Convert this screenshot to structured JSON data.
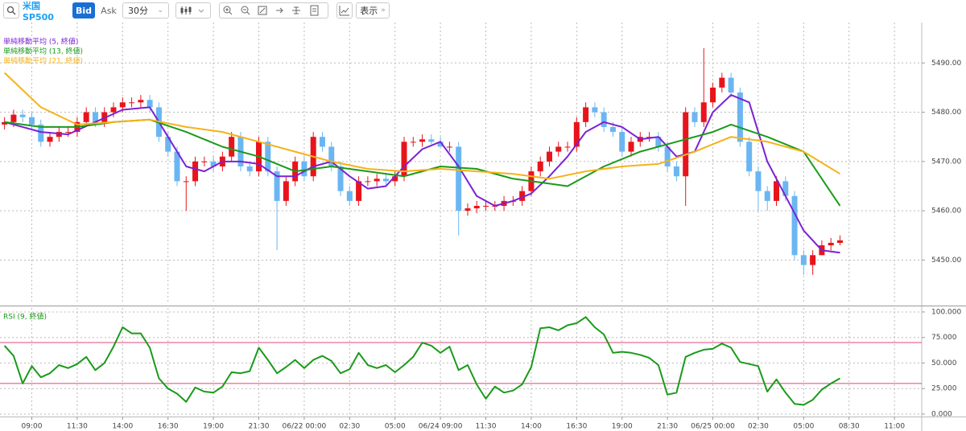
{
  "toolbar": {
    "symbol": "米国SP500",
    "bid": "Bid",
    "ask": "Ask",
    "interval": "30分",
    "display": "表示"
  },
  "chart_data": [
    {
      "type": "candlestick",
      "open": [
        5477.5,
        5478,
        5479.5,
        5479,
        5477.5,
        5474,
        5475,
        5476,
        5476,
        5478,
        5480,
        5478,
        5480,
        5481,
        5482,
        5482,
        5482.5,
        5481,
        5475,
        5472,
        5466,
        5466,
        5470,
        5470,
        5469,
        5471,
        5475,
        5469,
        5468,
        5474,
        5468,
        5462,
        5466,
        5470,
        5467,
        5475,
        5473,
        5469,
        5464,
        5462,
        5466,
        5466,
        5466.5,
        5466,
        5467,
        5474,
        5474,
        5474.5,
        5474,
        5473,
        5473,
        5460,
        5460.5,
        5461,
        5461,
        5461,
        5462,
        5462,
        5464,
        5468,
        5470,
        5472,
        5473,
        5473,
        5478,
        5481,
        5480,
        5477,
        5476,
        5472,
        5474,
        5475,
        5475,
        5473,
        5469,
        5467,
        5480,
        5478,
        5482,
        5485,
        5487,
        5484,
        5474,
        5468,
        5464,
        5462,
        5466,
        5463,
        5451,
        5449,
        5451,
        5453,
        5453.5
      ],
      "high": [
        5479,
        5480.5,
        5480.5,
        5480,
        5478.5,
        5476,
        5477,
        5477,
        5479,
        5481,
        5481,
        5481,
        5482,
        5483,
        5483,
        5483.5,
        5483.5,
        5482,
        5476,
        5473,
        5467,
        5471,
        5471,
        5471,
        5472,
        5476,
        5476,
        5470,
        5475,
        5475,
        5469,
        5467,
        5471,
        5471,
        5476,
        5476,
        5474,
        5470,
        5465,
        5467,
        5467,
        5467.5,
        5467.5,
        5468,
        5475,
        5475,
        5475.5,
        5475.5,
        5475,
        5474,
        5474,
        5461.5,
        5462,
        5462,
        5462,
        5463,
        5463,
        5465,
        5469,
        5471,
        5473,
        5474,
        5474,
        5479,
        5482,
        5482,
        5481,
        5478,
        5477,
        5475,
        5476,
        5476,
        5476,
        5474,
        5470,
        5481,
        5481,
        5493,
        5486,
        5488,
        5488,
        5485,
        5475,
        5469,
        5465,
        5467,
        5467,
        5464,
        5452,
        5452,
        5454,
        5454.5,
        5455
      ],
      "low": [
        5476.5,
        5477,
        5478,
        5476.5,
        5473,
        5473,
        5474,
        5475,
        5475,
        5477,
        5477,
        5477,
        5479,
        5480,
        5481,
        5481,
        5480,
        5474,
        5471,
        5465,
        5460,
        5465,
        5469,
        5468,
        5468,
        5470,
        5468,
        5467,
        5467,
        5467,
        5452,
        5461,
        5465,
        5466,
        5466,
        5472,
        5468,
        5463,
        5461,
        5461,
        5465,
        5465,
        5465,
        5465,
        5466,
        5473,
        5473,
        5473.5,
        5473,
        5472,
        5455,
        5459,
        5459.5,
        5460,
        5460,
        5460,
        5461,
        5461,
        5463,
        5467,
        5469,
        5471,
        5472,
        5472,
        5477,
        5479,
        5476,
        5475,
        5471,
        5471,
        5473,
        5474,
        5472,
        5468,
        5466,
        5461,
        5477,
        5477,
        5481,
        5484,
        5483,
        5473,
        5467,
        5460,
        5460,
        5461,
        5462,
        5450,
        5447,
        5447,
        5451,
        5452,
        5453
      ],
      "close": [
        5478,
        5479.5,
        5479,
        5477.5,
        5474,
        5475,
        5476,
        5476,
        5478,
        5480,
        5478,
        5480,
        5481,
        5482,
        5482,
        5482.5,
        5481,
        5475,
        5472,
        5466,
        5466,
        5470,
        5470,
        5469,
        5471,
        5475,
        5469,
        5468,
        5474,
        5468,
        5462,
        5466,
        5470,
        5467,
        5475,
        5473,
        5469,
        5464,
        5462,
        5466,
        5466,
        5466.5,
        5466,
        5467,
        5474,
        5474,
        5474.5,
        5474,
        5473,
        5473,
        5460,
        5460.5,
        5461,
        5461,
        5461,
        5462,
        5462,
        5464,
        5468,
        5470,
        5472,
        5473,
        5473,
        5478,
        5481,
        5480,
        5477,
        5476,
        5472,
        5474,
        5475,
        5475,
        5473,
        5469,
        5467,
        5480,
        5478,
        5482,
        5485,
        5487,
        5484,
        5474,
        5468,
        5464,
        5462,
        5466,
        5463,
        5451,
        5449,
        5451,
        5453,
        5453.5,
        5454
      ],
      "up_color": "#e8141b",
      "down_color": "#6bb6f2",
      "ylim": [
        5441.1,
        5498.2
      ],
      "yticks": [
        {
          "value": 5450,
          "label": "5450.00"
        },
        {
          "value": 5460,
          "label": "5460.00"
        },
        {
          "value": 5470,
          "label": "5470.00"
        },
        {
          "value": 5480,
          "label": "5480.00"
        },
        {
          "value": 5490,
          "label": "5490.00"
        }
      ],
      "grid": true,
      "series": [
        {
          "name": "単純移動平均 (5, 終値)",
          "color": "#7b22d4",
          "x": [
            0,
            4,
            7,
            10,
            13,
            16,
            18,
            20,
            22,
            24,
            26,
            28,
            30,
            32,
            34,
            36,
            38,
            40,
            42,
            44,
            46,
            48,
            50,
            52,
            54,
            56,
            58,
            60,
            62,
            64,
            66,
            68,
            70,
            72,
            74,
            76,
            78,
            80,
            82,
            84,
            86,
            88,
            90,
            92
          ],
          "values": [
            5478,
            5476,
            5475.5,
            5478,
            5480.5,
            5481,
            5475,
            5469,
            5468,
            5470,
            5470,
            5469.5,
            5467,
            5467,
            5469,
            5470,
            5467,
            5464.5,
            5465,
            5469,
            5472.5,
            5474,
            5469,
            5463,
            5461,
            5462,
            5463.5,
            5467,
            5471,
            5476,
            5478,
            5477,
            5474.5,
            5475,
            5471,
            5472,
            5480,
            5483.5,
            5482,
            5470,
            5463,
            5456,
            5452,
            5451.5
          ]
        },
        {
          "name": "単純移動平均 (13, 終値)",
          "color": "#1a9a1a",
          "x": [
            0,
            4,
            8,
            12,
            16,
            20,
            24,
            28,
            32,
            36,
            40,
            44,
            48,
            52,
            56,
            60,
            62,
            66,
            70,
            74,
            78,
            80,
            84,
            88,
            92
          ],
          "values": [
            5478,
            5477,
            5477,
            5478,
            5478.5,
            5476,
            5473,
            5471,
            5468,
            5469,
            5468,
            5467,
            5469,
            5468.5,
            5466.5,
            5465.5,
            5465,
            5469,
            5472,
            5474,
            5476,
            5477.5,
            5475,
            5472,
            5461
          ]
        },
        {
          "name": "単純移動平均 (21, 終値)",
          "color": "#f5b21a",
          "x": [
            0,
            4,
            8,
            12,
            16,
            20,
            24,
            28,
            32,
            36,
            40,
            44,
            48,
            52,
            56,
            60,
            64,
            68,
            72,
            76,
            80,
            84,
            88,
            92
          ],
          "values": [
            5488,
            5481,
            5477.5,
            5478,
            5478.5,
            5477,
            5476,
            5474,
            5472,
            5470,
            5468.5,
            5468,
            5468.5,
            5468,
            5467.5,
            5466.5,
            5468,
            5469,
            5469.5,
            5472,
            5475,
            5474,
            5472,
            5467.5
          ]
        }
      ]
    },
    {
      "type": "line",
      "series": [
        {
          "name": "RSI (9, 終値)",
          "color": "#1a9a1a",
          "values": [
            67,
            57,
            30,
            47,
            36,
            40,
            48,
            45,
            49,
            56,
            43,
            50,
            66,
            85,
            79,
            79,
            65,
            35,
            25,
            20,
            12,
            26,
            22,
            21,
            27,
            41,
            40,
            42,
            65,
            53,
            40,
            46,
            53,
            45,
            53,
            57,
            52,
            40,
            44,
            60,
            48,
            45,
            48,
            41,
            48,
            56,
            70,
            67,
            60,
            66,
            43,
            48,
            29,
            15,
            27,
            21,
            23,
            29,
            46,
            84,
            85,
            82,
            87,
            89,
            95,
            85,
            78,
            60,
            61,
            60,
            58,
            55,
            48,
            19,
            21,
            56,
            60,
            63,
            64,
            69,
            65,
            51,
            49,
            47,
            22,
            34,
            21,
            10,
            9,
            14,
            24,
            30,
            35
          ]
        }
      ],
      "levels": [
        30,
        70
      ],
      "level_color": "#e0457b",
      "ylim": [
        -2.4,
        103.9
      ],
      "yticks": [
        {
          "value": 0,
          "label": "0.000"
        },
        {
          "value": 25,
          "label": "25.000"
        },
        {
          "value": 50,
          "label": "50.000"
        },
        {
          "value": 75,
          "label": "75.000"
        },
        {
          "value": 100,
          "label": "100.000"
        }
      ],
      "grid": true,
      "xlim": [
        -0.5,
        101
      ],
      "xticks": [
        {
          "value": 3,
          "label": "09:00"
        },
        {
          "value": 8,
          "label": "11:30"
        },
        {
          "value": 13,
          "label": "14:00"
        },
        {
          "value": 18,
          "label": "16:30"
        },
        {
          "value": 23,
          "label": "19:00"
        },
        {
          "value": 28,
          "label": "21:30"
        },
        {
          "value": 33,
          "label": "06/22 00:00"
        },
        {
          "value": 38,
          "label": "02:30"
        },
        {
          "value": 43,
          "label": "05:00"
        },
        {
          "value": 48,
          "label": "06/24 09:00"
        },
        {
          "value": 53,
          "label": "11:30"
        },
        {
          "value": 58,
          "label": "14:00"
        },
        {
          "value": 63,
          "label": "16:30"
        },
        {
          "value": 68,
          "label": "19:00"
        },
        {
          "value": 73,
          "label": "21:30"
        },
        {
          "value": 78,
          "label": "06/25 00:00"
        },
        {
          "value": 83,
          "label": "02:30"
        },
        {
          "value": 88,
          "label": "05:00"
        },
        {
          "value": 93,
          "label": "08:30"
        },
        {
          "value": 98,
          "label": "11:00"
        }
      ]
    }
  ]
}
